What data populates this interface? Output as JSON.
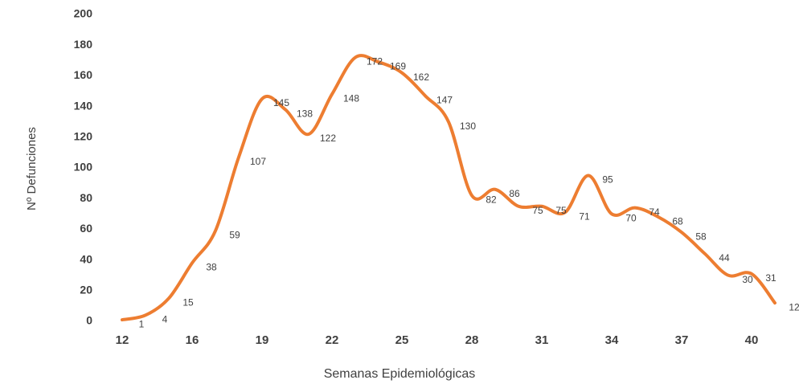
{
  "chart_data": {
    "type": "line",
    "y_label": "Nº Defunciones",
    "x_label": "Semanas Epidemiológicas",
    "categories": [
      "12",
      null,
      null,
      "16",
      null,
      null,
      "19",
      null,
      null,
      "22",
      null,
      null,
      "25",
      null,
      null,
      "28",
      null,
      null,
      "31",
      null,
      null,
      "34",
      null,
      null,
      "37",
      null,
      null,
      "40",
      null
    ],
    "series": [
      {
        "name": "Defunciones",
        "color": "#ed7d31",
        "values": [
          1,
          4,
          15,
          38,
          59,
          107,
          145,
          138,
          122,
          148,
          172,
          169,
          162,
          147,
          130,
          82,
          86,
          75,
          75,
          71,
          95,
          70,
          74,
          68,
          58,
          44,
          30,
          31,
          12
        ]
      }
    ],
    "ylim": [
      0,
      200
    ],
    "yticks": [
      0,
      20,
      40,
      60,
      80,
      100,
      120,
      140,
      160,
      180,
      200
    ],
    "grid": false,
    "smooth": true
  }
}
